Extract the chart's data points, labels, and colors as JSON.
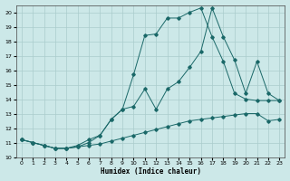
{
  "xlabel": "Humidex (Indice chaleur)",
  "xlim": [
    -0.5,
    23.5
  ],
  "ylim": [
    10,
    20.5
  ],
  "yticks": [
    10,
    11,
    12,
    13,
    14,
    15,
    16,
    17,
    18,
    19,
    20
  ],
  "xticks": [
    0,
    1,
    2,
    3,
    4,
    5,
    6,
    7,
    8,
    9,
    10,
    11,
    12,
    13,
    14,
    15,
    16,
    17,
    18,
    19,
    20,
    21,
    22,
    23
  ],
  "background_color": "#cce8e8",
  "grid_color": "#aacccc",
  "line_color": "#1a6868",
  "curve1_x": [
    0,
    1,
    2,
    3,
    4,
    5,
    6,
    7,
    8,
    9,
    10,
    11,
    12,
    13,
    14,
    15,
    16,
    17,
    18,
    19,
    20,
    21,
    22,
    23
  ],
  "curve1_y": [
    11.2,
    11.0,
    10.8,
    10.6,
    10.6,
    10.7,
    10.8,
    10.9,
    11.1,
    11.3,
    11.5,
    11.7,
    11.9,
    12.1,
    12.3,
    12.5,
    12.6,
    12.7,
    12.8,
    12.9,
    13.0,
    13.0,
    12.5,
    12.6
  ],
  "curve2_x": [
    0,
    1,
    2,
    3,
    4,
    5,
    6,
    7,
    8,
    9,
    10,
    11,
    12,
    13,
    14,
    15,
    16,
    17,
    18,
    19,
    20,
    21,
    22,
    23
  ],
  "curve2_y": [
    11.2,
    11.0,
    10.8,
    10.6,
    10.6,
    10.7,
    11.0,
    11.5,
    12.6,
    13.3,
    15.7,
    18.4,
    18.5,
    19.6,
    19.6,
    20.0,
    20.3,
    18.3,
    16.6,
    14.4,
    14.0,
    13.9,
    13.9,
    13.9
  ],
  "curve3_x": [
    0,
    1,
    2,
    3,
    4,
    5,
    6,
    7,
    8,
    9,
    10,
    11,
    12,
    13,
    14,
    15,
    16,
    17,
    18,
    19,
    20,
    21,
    22,
    23
  ],
  "curve3_y": [
    11.2,
    11.0,
    10.8,
    10.6,
    10.6,
    10.8,
    11.2,
    11.5,
    12.6,
    13.3,
    13.5,
    14.7,
    13.3,
    14.7,
    15.2,
    16.2,
    17.3,
    20.3,
    18.3,
    16.7,
    14.4,
    16.6,
    14.4,
    13.9
  ]
}
